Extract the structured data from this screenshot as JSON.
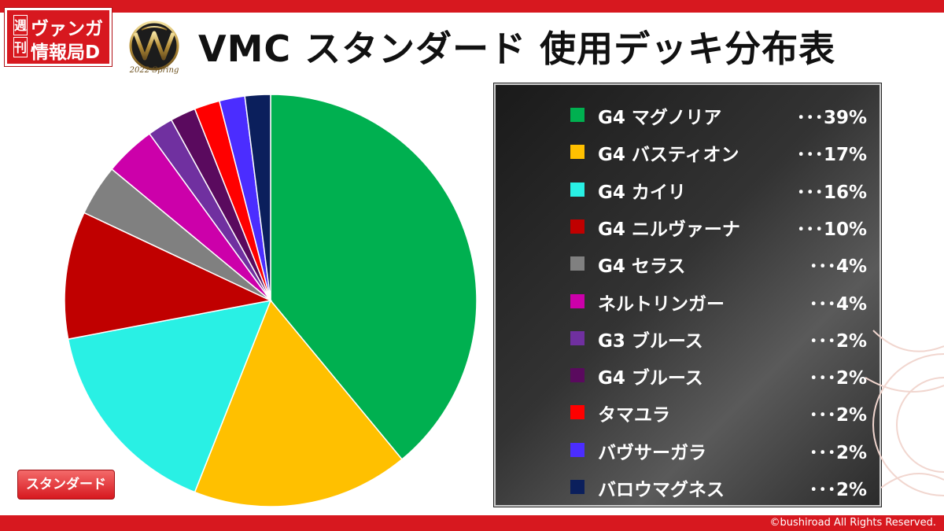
{
  "header": {
    "logo_kanji": [
      "週",
      "刊"
    ],
    "logo_line1": "ヴァンガ",
    "logo_line2": "情報局D",
    "emblem_text": "2022 Spring",
    "title": "VMC スタンダード 使用デッキ分布表"
  },
  "badge": "スタンダード",
  "footer": {
    "copyright": "©bushiroad All Rights Reserved."
  },
  "colors": {
    "brand_red": "#d7181f"
  },
  "chart_data": {
    "type": "pie",
    "title": "VMC スタンダード 使用デッキ分布表",
    "slices": [
      {
        "label": "G4 マグノリア",
        "value": 39,
        "display": "･･･39%",
        "color": "#00b050"
      },
      {
        "label": "G4 バスティオン",
        "value": 17,
        "display": "･･･17%",
        "color": "#ffc000"
      },
      {
        "label": "G4 カイリ",
        "value": 16,
        "display": "･･･16%",
        "color": "#29f0e4"
      },
      {
        "label": "G4 ニルヴァーナ",
        "value": 10,
        "display": "･･･10%",
        "color": "#c00000"
      },
      {
        "label": "G4 セラス",
        "value": 4,
        "display": "･･･4%",
        "color": "#808080"
      },
      {
        "label": "ネルトリンガー",
        "value": 4,
        "display": "･･･4%",
        "color": "#cc00aa"
      },
      {
        "label": "G3 ブルース",
        "value": 2,
        "display": "･･･2%",
        "color": "#7030a0"
      },
      {
        "label": "G4 ブルース",
        "value": 2,
        "display": "･･･2%",
        "color": "#5a0a5e"
      },
      {
        "label": "タマユラ",
        "value": 2,
        "display": "･･･2%",
        "color": "#ff0000"
      },
      {
        "label": "バヴサーガラ",
        "value": 2,
        "display": "･･･2%",
        "color": "#4b2dff"
      },
      {
        "label": "バロウマグネス",
        "value": 2,
        "display": "･･･2%",
        "color": "#0b1f5c"
      }
    ],
    "legend_position": "right"
  }
}
